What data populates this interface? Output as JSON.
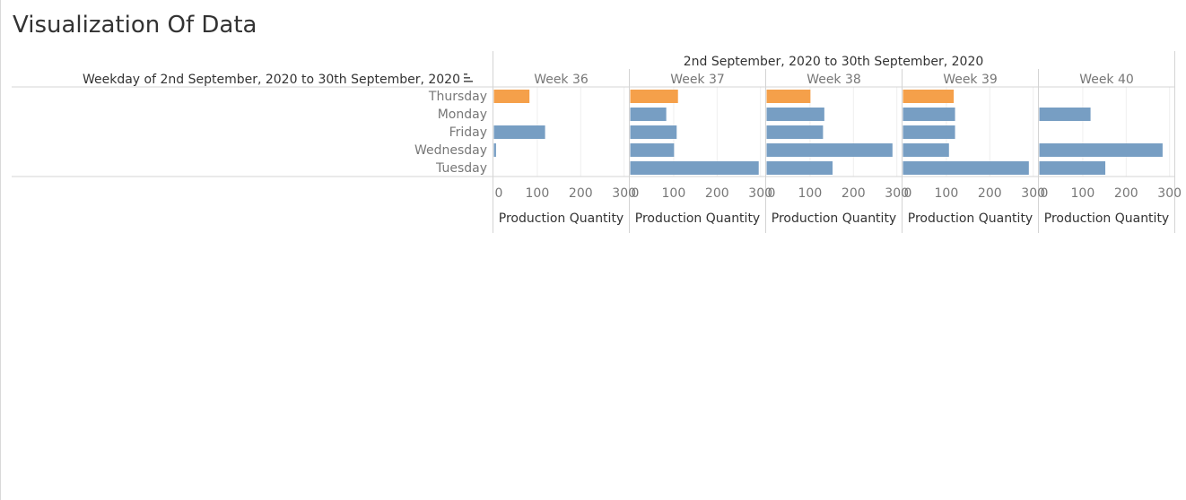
{
  "title": "Visualization Of Data",
  "chart_data": {
    "type": "bar",
    "orientation": "horizontal",
    "column_header": "2nd September, 2020 to 30th September, 2020",
    "row_header": "Weekday of 2nd September, 2020 to 30th September, 2020",
    "sort_icon": "sort-descending-icon",
    "panels": [
      "Week 36",
      "Week 37",
      "Week 38",
      "Week 39",
      "Week 40"
    ],
    "categories": [
      "Thursday",
      "Monday",
      "Friday",
      "Wednesday",
      "Tuesday"
    ],
    "xlabel": "Production Quantity",
    "xlim": [
      0,
      310
    ],
    "xticks": [
      0,
      100,
      200,
      300
    ],
    "grid": true,
    "colors": {
      "highlight": "#f5a04a",
      "default": "#779ec3"
    },
    "highlight_category": "Thursday",
    "values": [
      {
        "panel": "Week 36",
        "values": [
          82,
          null,
          118,
          5,
          null
        ]
      },
      {
        "panel": "Week 37",
        "values": [
          110,
          83,
          107,
          101,
          296
        ]
      },
      {
        "panel": "Week 38",
        "values": [
          101,
          133,
          130,
          290,
          152
        ]
      },
      {
        "panel": "Week 39",
        "values": [
          117,
          120,
          120,
          106,
          290
        ]
      },
      {
        "panel": "Week 40",
        "values": [
          null,
          118,
          null,
          284,
          152
        ]
      }
    ]
  }
}
